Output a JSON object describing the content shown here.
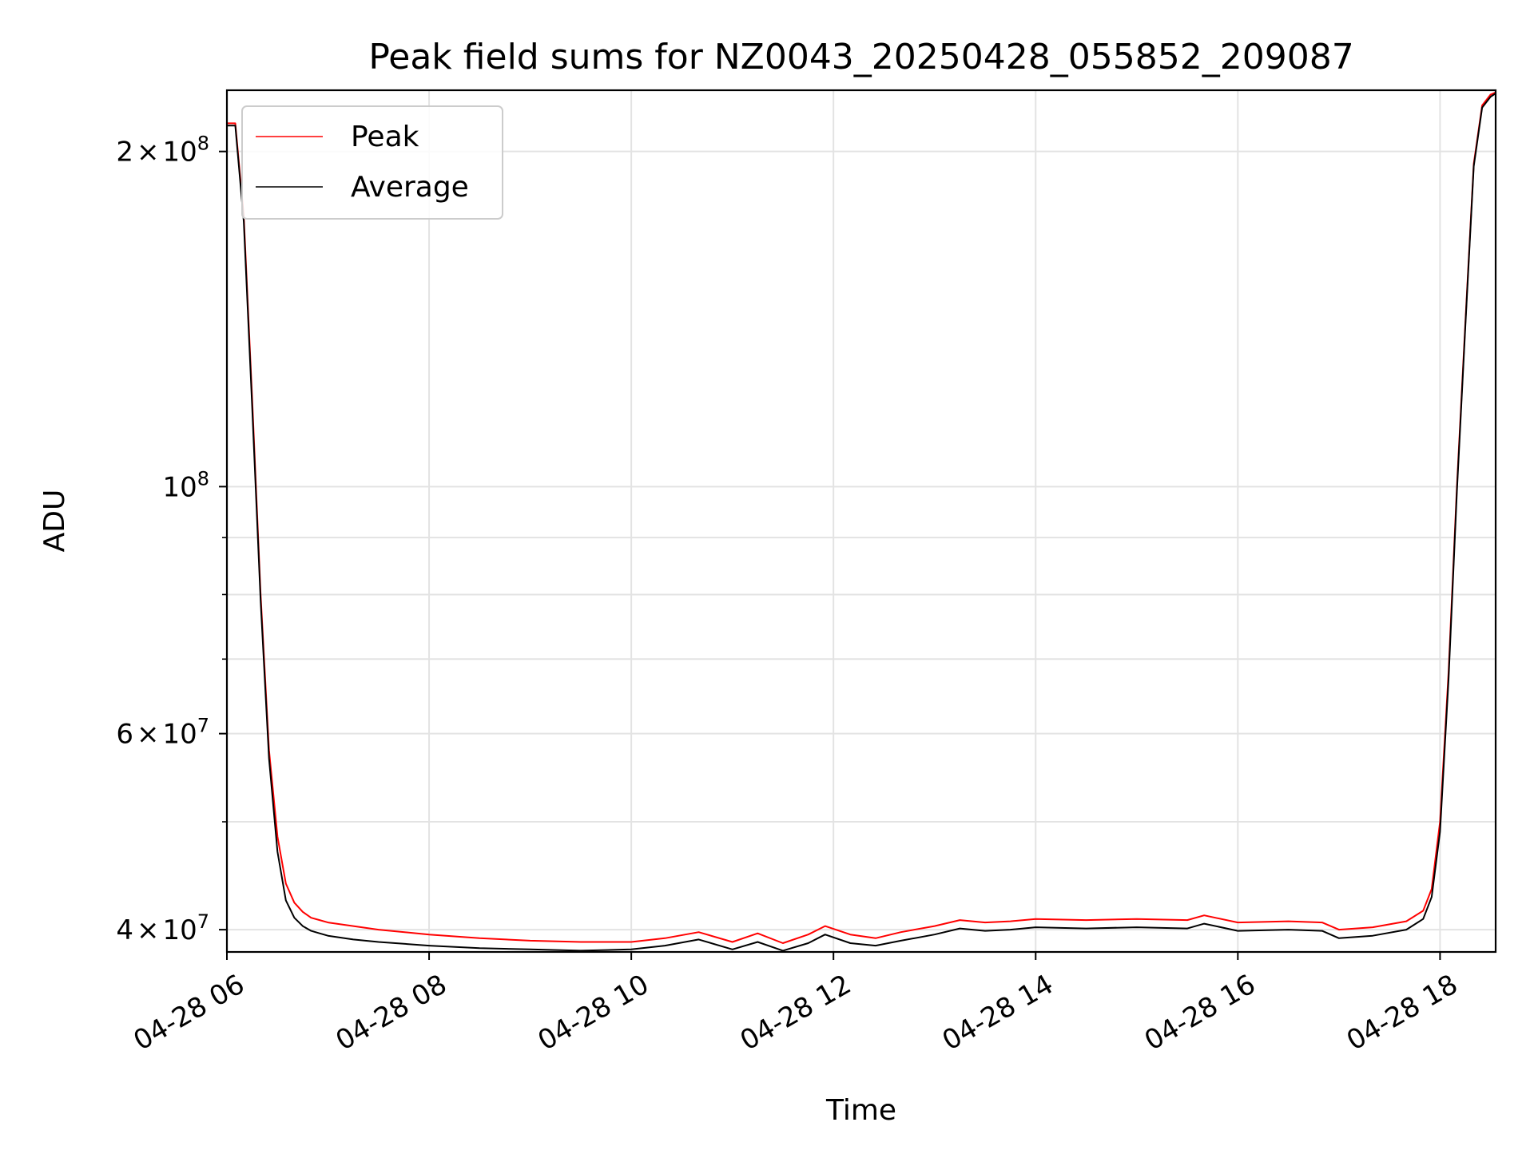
{
  "chart_data": {
    "type": "line",
    "title": "Peak field sums for NZ0043_20250428_055852_209087",
    "xlabel": "Time",
    "ylabel": "ADU",
    "yscale": "log",
    "grid": true,
    "legend_position": "top-left",
    "xlim": [
      "04-28 06:00",
      "04-28 18:33"
    ],
    "ylim": [
      38200000,
      227000000
    ],
    "x_ticks": [
      {
        "value": "04-28 06:00",
        "label": "04-28 06"
      },
      {
        "value": "04-28 08:00",
        "label": "04-28 08"
      },
      {
        "value": "04-28 10:00",
        "label": "04-28 10"
      },
      {
        "value": "04-28 12:00",
        "label": "04-28 12"
      },
      {
        "value": "04-28 14:00",
        "label": "04-28 14"
      },
      {
        "value": "04-28 16:00",
        "label": "04-28 16"
      },
      {
        "value": "04-28 18:00",
        "label": "04-28 18"
      }
    ],
    "y_major_ticks": [
      {
        "value": 200000000,
        "mantissa": "2",
        "exponent": "8"
      },
      {
        "value": 100000000,
        "mantissa": "",
        "exponent": "8"
      },
      {
        "value": 60000000,
        "mantissa": "6",
        "exponent": "7"
      },
      {
        "value": 40000000,
        "mantissa": "4",
        "exponent": "7"
      }
    ],
    "y_minor_ticks": [
      50000000,
      70000000,
      80000000,
      90000000
    ],
    "times_sign": "×",
    "base": "10",
    "series": [
      {
        "name": "Peak",
        "color": "#ff0000",
        "x": [
          "04-28 06:00",
          "04-28 06:05",
          "04-28 06:10",
          "04-28 06:15",
          "04-28 06:20",
          "04-28 06:25",
          "04-28 06:30",
          "04-28 06:35",
          "04-28 06:40",
          "04-28 06:45",
          "04-28 06:50",
          "04-28 06:55",
          "04-28 07:00",
          "04-28 07:15",
          "04-28 07:30",
          "04-28 08:00",
          "04-28 08:30",
          "04-28 09:00",
          "04-28 09:30",
          "04-28 10:00",
          "04-28 10:20",
          "04-28 10:40",
          "04-28 11:00",
          "04-28 11:15",
          "04-28 11:30",
          "04-28 11:45",
          "04-28 11:55",
          "04-28 12:10",
          "04-28 12:25",
          "04-28 12:40",
          "04-28 13:00",
          "04-28 13:15",
          "04-28 13:30",
          "04-28 13:45",
          "04-28 14:00",
          "04-28 14:30",
          "04-28 15:00",
          "04-28 15:30",
          "04-28 15:40",
          "04-28 16:00",
          "04-28 16:30",
          "04-28 16:50",
          "04-28 17:00",
          "04-28 17:20",
          "04-28 17:40",
          "04-28 17:50",
          "04-28 17:55",
          "04-28 18:00",
          "04-28 18:05",
          "04-28 18:10",
          "04-28 18:15",
          "04-28 18:20",
          "04-28 18:25",
          "04-28 18:30",
          "04-28 18:33"
        ],
        "y": [
          212000000,
          212000000,
          175000000,
          120000000,
          80000000,
          58000000,
          48500000,
          44000000,
          42300000,
          41500000,
          41000000,
          40800000,
          40600000,
          40300000,
          40000000,
          39600000,
          39300000,
          39100000,
          39000000,
          39000000,
          39300000,
          39800000,
          39000000,
          39700000,
          38900000,
          39600000,
          40300000,
          39600000,
          39300000,
          39800000,
          40300000,
          40800000,
          40600000,
          40700000,
          40900000,
          40800000,
          40900000,
          40800000,
          41200000,
          40600000,
          40700000,
          40600000,
          40000000,
          40200000,
          40700000,
          41600000,
          43500000,
          50000000,
          68000000,
          100000000,
          140000000,
          195000000,
          220000000,
          225000000,
          226000000
        ]
      },
      {
        "name": "Average",
        "color": "#000000",
        "x": [
          "04-28 06:00",
          "04-28 06:05",
          "04-28 06:10",
          "04-28 06:15",
          "04-28 06:20",
          "04-28 06:25",
          "04-28 06:30",
          "04-28 06:35",
          "04-28 06:40",
          "04-28 06:45",
          "04-28 06:50",
          "04-28 06:55",
          "04-28 07:00",
          "04-28 07:15",
          "04-28 07:30",
          "04-28 08:00",
          "04-28 08:30",
          "04-28 09:00",
          "04-28 09:30",
          "04-28 10:00",
          "04-28 10:20",
          "04-28 10:40",
          "04-28 11:00",
          "04-28 11:15",
          "04-28 11:30",
          "04-28 11:45",
          "04-28 11:55",
          "04-28 12:10",
          "04-28 12:25",
          "04-28 12:40",
          "04-28 13:00",
          "04-28 13:15",
          "04-28 13:30",
          "04-28 13:45",
          "04-28 14:00",
          "04-28 14:30",
          "04-28 15:00",
          "04-28 15:30",
          "04-28 15:40",
          "04-28 16:00",
          "04-28 16:30",
          "04-28 16:50",
          "04-28 17:00",
          "04-28 17:20",
          "04-28 17:40",
          "04-28 17:50",
          "04-28 17:55",
          "04-28 18:00",
          "04-28 18:05",
          "04-28 18:10",
          "04-28 18:15",
          "04-28 18:20",
          "04-28 18:25",
          "04-28 18:30",
          "04-28 18:33"
        ],
        "y": [
          211000000,
          211000000,
          173000000,
          118000000,
          79000000,
          57000000,
          47000000,
          42500000,
          41000000,
          40300000,
          39900000,
          39700000,
          39500000,
          39200000,
          39000000,
          38700000,
          38500000,
          38400000,
          38300000,
          38400000,
          38700000,
          39200000,
          38400000,
          39000000,
          38300000,
          38900000,
          39600000,
          38900000,
          38700000,
          39100000,
          39600000,
          40100000,
          39900000,
          40000000,
          40200000,
          40100000,
          40200000,
          40100000,
          40500000,
          39900000,
          40000000,
          39900000,
          39300000,
          39500000,
          40000000,
          40900000,
          42800000,
          49000000,
          67000000,
          99000000,
          139000000,
          194000000,
          219000000,
          224000000,
          225500000
        ]
      }
    ]
  }
}
